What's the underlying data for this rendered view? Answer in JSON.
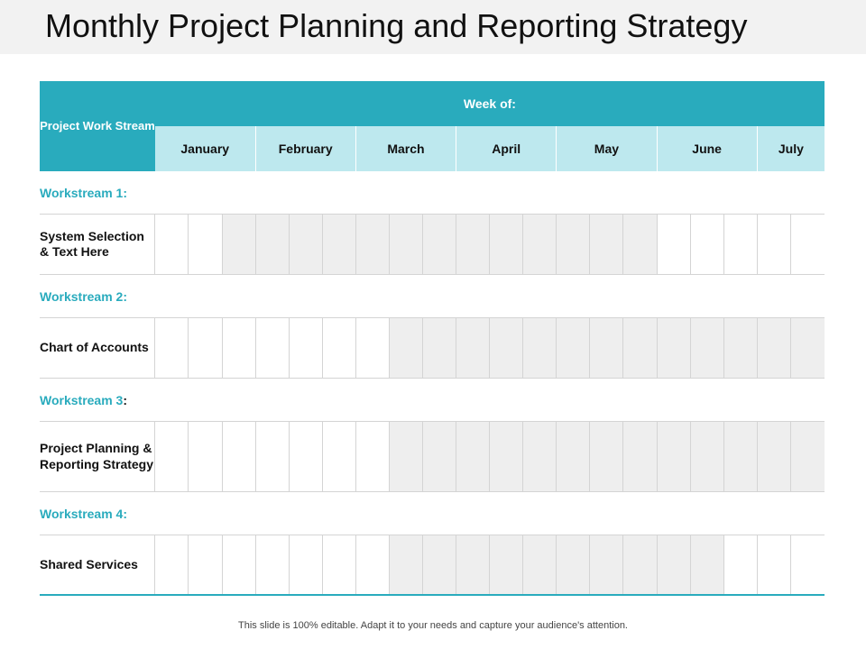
{
  "title": "Monthly Project Planning and Reporting Strategy",
  "table": {
    "stream_header": "Project Work Stream",
    "week_header": "Week of:",
    "months": [
      "January",
      "February",
      "March",
      "April",
      "May",
      "June",
      "July"
    ],
    "workstreams": [
      {
        "heading": "Workstream 1:",
        "task": "System Selection & Text Here",
        "weeks_shaded": [
          false,
          false,
          true,
          true,
          true,
          true,
          true,
          true,
          true,
          true,
          true,
          true,
          true,
          true,
          true,
          false,
          false,
          false,
          false,
          false
        ]
      },
      {
        "heading": "Workstream 2:",
        "task": "Chart of Accounts",
        "weeks_shaded": [
          false,
          false,
          false,
          false,
          false,
          false,
          false,
          true,
          true,
          true,
          true,
          true,
          true,
          true,
          true,
          true,
          true,
          true,
          true,
          true
        ]
      },
      {
        "heading_text": "Workstream 3",
        "heading_colon": ":",
        "task": "Project Planning & Reporting Strategy",
        "weeks_shaded": [
          false,
          false,
          false,
          false,
          false,
          false,
          false,
          true,
          true,
          true,
          true,
          true,
          true,
          true,
          true,
          true,
          true,
          true,
          true,
          true
        ]
      },
      {
        "heading": "Workstream 4:",
        "task": "Shared Services",
        "weeks_shaded": [
          false,
          false,
          false,
          false,
          false,
          false,
          false,
          true,
          true,
          true,
          true,
          true,
          true,
          true,
          true,
          true,
          true,
          false,
          false,
          false
        ]
      }
    ]
  },
  "footer": "This slide is 100% editable. Adapt it to your needs and capture your audience's attention.",
  "colors": {
    "header_teal": "#29abbd",
    "month_light": "#bde8ee",
    "shaded_cell": "#eeeeee",
    "grid_line": "#d4d4d4"
  }
}
